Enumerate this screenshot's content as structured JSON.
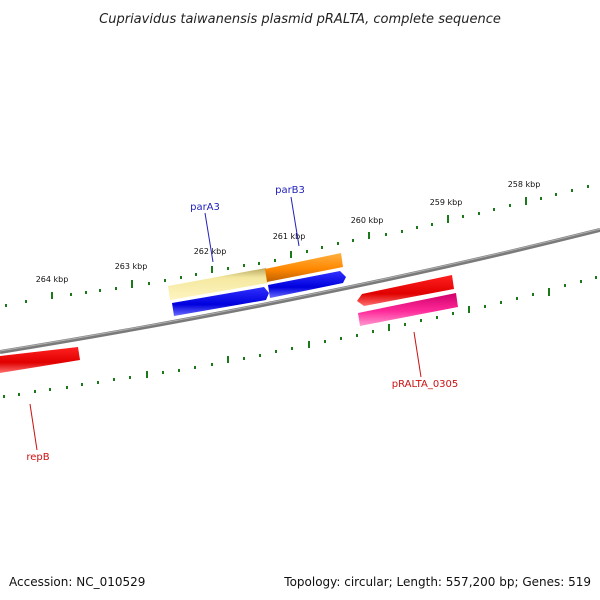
{
  "header": {
    "title": "Cupriavidus taiwanensis plasmid pRALTA, complete sequence"
  },
  "footer": {
    "accession": "Accession: NC_010529",
    "summary": "Topology: circular; Length: 557,200 bp; Genes: 519"
  },
  "ruler": {
    "labels": [
      "264 kbp",
      "263 kbp",
      "262 kbp",
      "261 kbp",
      "260 kbp",
      "259 kbp",
      "258 kbp"
    ]
  },
  "genes": {
    "parA3": "parA3",
    "parB3": "parB3",
    "pRALTA_0305": "pRALTA_0305",
    "repB": "repB"
  },
  "colors": {
    "backbone": "#808080",
    "tick": "#1a7a1a",
    "forward_label": "#2222bb",
    "reverse_label": "#cc1111",
    "blue_feature": "#1010dd",
    "red_feature": "#ee1111",
    "pink_feature": "#ee1199",
    "orange_feature": "#ff8c00",
    "khaki_feature": "#f0e68c"
  }
}
